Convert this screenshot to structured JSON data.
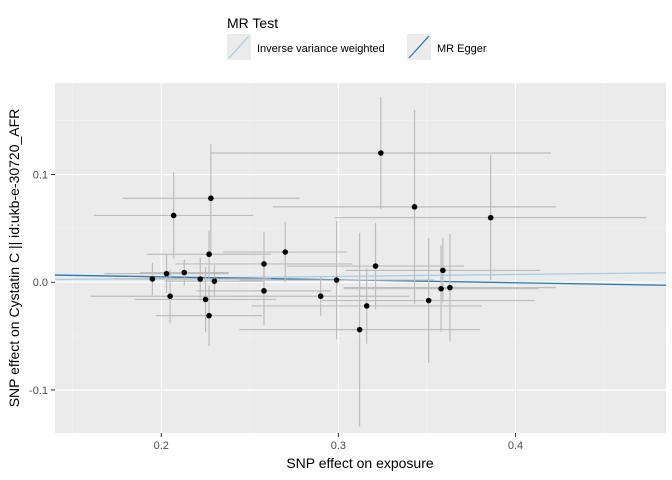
{
  "chart_data": {
    "type": "scatter",
    "xlabel": "SNP effect on exposure",
    "ylabel": "SNP effect on Cystatin C || id:ukb-e-30720_AFR",
    "xlim": [
      0.14,
      0.485
    ],
    "ylim": [
      -0.14,
      0.185
    ],
    "x_ticks": [
      0.2,
      0.3,
      0.4
    ],
    "x_tick_labels": [
      "0.2",
      "0.3",
      "0.4"
    ],
    "y_ticks": [
      -0.1,
      0.0,
      0.1
    ],
    "y_tick_labels": [
      "-0.1",
      "0.0",
      "0.1"
    ],
    "grid": true,
    "legend": {
      "title": "MR Test",
      "placement": "top",
      "entries": [
        {
          "label": "Inverse variance weighted",
          "color": "#a6cee3"
        },
        {
          "label": "MR Egger",
          "color": "#1f78b4"
        }
      ]
    },
    "lines": [
      {
        "name": "Inverse variance weighted",
        "color": "#a6cee3",
        "intercept": 0.0,
        "slope": 0.018
      },
      {
        "name": "MR Egger",
        "color": "#1f78b4",
        "intercept": 0.0105,
        "slope": -0.0275
      }
    ],
    "points": [
      {
        "x": 0.195,
        "y": 0.003,
        "xerr": 0.022,
        "yerr": 0.015
      },
      {
        "x": 0.203,
        "y": 0.008,
        "xerr": 0.035,
        "yerr": 0.018
      },
      {
        "x": 0.205,
        "y": -0.013,
        "xerr": 0.045,
        "yerr": 0.025
      },
      {
        "x": 0.207,
        "y": 0.062,
        "xerr": 0.045,
        "yerr": 0.04
      },
      {
        "x": 0.213,
        "y": 0.009,
        "xerr": 0.025,
        "yerr": 0.012
      },
      {
        "x": 0.222,
        "y": 0.003,
        "xerr": 0.04,
        "yerr": 0.02
      },
      {
        "x": 0.225,
        "y": -0.016,
        "xerr": 0.04,
        "yerr": 0.03
      },
      {
        "x": 0.227,
        "y": -0.031,
        "xerr": 0.03,
        "yerr": 0.028
      },
      {
        "x": 0.227,
        "y": 0.026,
        "xerr": 0.035,
        "yerr": 0.022
      },
      {
        "x": 0.228,
        "y": 0.078,
        "xerr": 0.05,
        "yerr": 0.05
      },
      {
        "x": 0.23,
        "y": 0.001,
        "xerr": 0.028,
        "yerr": 0.015
      },
      {
        "x": 0.258,
        "y": 0.017,
        "xerr": 0.05,
        "yerr": 0.03
      },
      {
        "x": 0.258,
        "y": -0.008,
        "xerr": 0.038,
        "yerr": 0.032
      },
      {
        "x": 0.27,
        "y": 0.028,
        "xerr": 0.035,
        "yerr": 0.028
      },
      {
        "x": 0.29,
        "y": -0.013,
        "xerr": 0.05,
        "yerr": 0.018
      },
      {
        "x": 0.299,
        "y": 0.002,
        "xerr": 0.055,
        "yerr": 0.055
      },
      {
        "x": 0.312,
        "y": -0.044,
        "xerr": 0.068,
        "yerr": 0.09
      },
      {
        "x": 0.316,
        "y": -0.022,
        "xerr": 0.065,
        "yerr": 0.035
      },
      {
        "x": 0.321,
        "y": 0.015,
        "xerr": 0.05,
        "yerr": 0.04
      },
      {
        "x": 0.324,
        "y": 0.12,
        "xerr": 0.096,
        "yerr": 0.052
      },
      {
        "x": 0.343,
        "y": 0.07,
        "xerr": 0.08,
        "yerr": 0.09
      },
      {
        "x": 0.351,
        "y": -0.017,
        "xerr": 0.06,
        "yerr": 0.058
      },
      {
        "x": 0.358,
        "y": -0.006,
        "xerr": 0.055,
        "yerr": 0.04
      },
      {
        "x": 0.359,
        "y": 0.011,
        "xerr": 0.055,
        "yerr": 0.03
      },
      {
        "x": 0.363,
        "y": -0.005,
        "xerr": 0.06,
        "yerr": 0.05
      },
      {
        "x": 0.386,
        "y": 0.06,
        "xerr": 0.088,
        "yerr": 0.058
      }
    ]
  }
}
